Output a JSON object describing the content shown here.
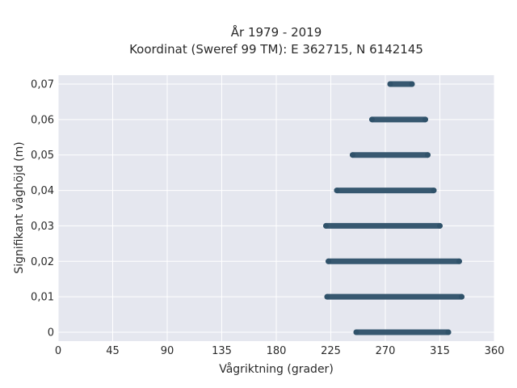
{
  "chart_data": {
    "type": "scatter",
    "title_line1": "År 1979 - 2019",
    "title_line2": "Koordinat (Sweref 99 TM): E 362715, N 6142145",
    "xlabel": "Vågriktning (grader)",
    "ylabel": "Signifikant våghöjd (m)",
    "xlim": [
      0,
      360
    ],
    "ylim": [
      -0.0025,
      0.0725
    ],
    "x_ticks": [
      0,
      45,
      90,
      135,
      180,
      225,
      270,
      315,
      360
    ],
    "x_tick_labels": [
      "0",
      "45",
      "90",
      "135",
      "180",
      "225",
      "270",
      "315",
      "360"
    ],
    "y_ticks": [
      0,
      0.01,
      0.02,
      0.03,
      0.04,
      0.05,
      0.06,
      0.07
    ],
    "y_tick_labels": [
      "0",
      "0,01",
      "0,02",
      "0,03",
      "0,04",
      "0,05",
      "0,06",
      "0,07"
    ],
    "grid": true,
    "background_color": "#e5e7ef",
    "grid_color": "#ffffff",
    "marker_color": "#2d5068",
    "bands": [
      {
        "y": 0.0,
        "x_min": 246,
        "x_max": 322
      },
      {
        "y": 0.01,
        "x_min": 222,
        "x_max": 333
      },
      {
        "y": 0.02,
        "x_min": 223,
        "x_max": 331
      },
      {
        "y": 0.03,
        "x_min": 221,
        "x_max": 315
      },
      {
        "y": 0.04,
        "x_min": 230,
        "x_max": 310
      },
      {
        "y": 0.05,
        "x_min": 243,
        "x_max": 305
      },
      {
        "y": 0.06,
        "x_min": 259,
        "x_max": 303
      },
      {
        "y": 0.07,
        "x_min": 274,
        "x_max": 292
      }
    ]
  }
}
